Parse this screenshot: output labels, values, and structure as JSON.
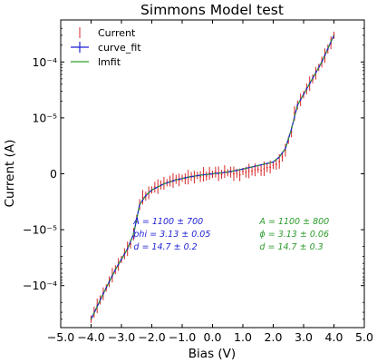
{
  "chart_data": {
    "type": "scatter",
    "title": "Simmons Model test",
    "xlabel": "Bias (V)",
    "ylabel": "Current (A)",
    "xlim": [
      -5.0,
      5.0
    ],
    "x_ticks": [
      -5.0,
      -4.0,
      -3.0,
      -2.0,
      -1.0,
      0.0,
      1.0,
      2.0,
      3.0,
      4.0,
      5.0
    ],
    "x_tick_labels": [
      "−5.0",
      "−4.0",
      "−3.0",
      "−2.0",
      "−1.0",
      "0.0",
      "1.0",
      "2.0",
      "3.0",
      "4.0",
      "5.0"
    ],
    "y_scale": "symlog",
    "y_linthresh": 1e-05,
    "y_ticks": [
      -0.0001,
      -1e-05,
      0,
      1e-05,
      0.0001
    ],
    "y_tick_labels": [
      "−10⁻⁴",
      "−10⁻⁵",
      "0",
      "10⁻⁵",
      "10⁻⁴"
    ],
    "ylim": [
      -0.0004,
      0.0004
    ],
    "grid": false,
    "legend": {
      "position": "top-left",
      "entries": [
        {
          "label": "Current",
          "color": "#d62728",
          "marker": "errorbar"
        },
        {
          "label": "curve_fit",
          "color": "#1f1fd6",
          "marker": "errorbar-cross"
        },
        {
          "label": "lmfit",
          "color": "#2ca02c",
          "marker": "line"
        }
      ]
    },
    "series": [
      {
        "name": "Current",
        "color": "#d62728",
        "style": "errorbar",
        "x": [
          -4.0,
          -3.9,
          -3.8,
          -3.7,
          -3.6,
          -3.5,
          -3.4,
          -3.3,
          -3.2,
          -3.1,
          -3.0,
          -2.9,
          -2.8,
          -2.7,
          -2.6,
          -2.5,
          -2.4,
          -2.3,
          -2.2,
          -2.1,
          -2.0,
          -1.9,
          -1.8,
          -1.7,
          -1.6,
          -1.5,
          -1.4,
          -1.3,
          -1.2,
          -1.1,
          -1.0,
          -0.9,
          -0.8,
          -0.7,
          -0.6,
          -0.5,
          -0.4,
          -0.3,
          -0.2,
          -0.1,
          0.0,
          0.1,
          0.2,
          0.3,
          0.4,
          0.5,
          0.6,
          0.7,
          0.8,
          0.9,
          1.0,
          1.1,
          1.2,
          1.3,
          1.4,
          1.5,
          1.6,
          1.7,
          1.8,
          1.9,
          2.0,
          2.1,
          2.2,
          2.3,
          2.4,
          2.5,
          2.6,
          2.7,
          2.8,
          2.9,
          3.0,
          3.1,
          3.2,
          3.3,
          3.4,
          3.5,
          3.6,
          3.7,
          3.8,
          3.9,
          4.0
        ],
        "y": [
          -0.0004,
          -0.0003,
          -0.00023,
          -0.00018,
          -0.00014,
          -0.00011,
          -8.5e-05,
          -6.5e-05,
          -5.2e-05,
          -4.2e-05,
          -3.4e-05,
          -2.7e-05,
          -2.2e-05,
          -1.8e-05,
          -1.2e-05,
          -8e-06,
          -5.5e-06,
          -4.2e-06,
          -4e-06,
          -3.4e-06,
          -2.9e-06,
          -2.4e-06,
          -2.3e-06,
          -2e-06,
          -1.7e-06,
          -1.6e-06,
          -1.3e-06,
          -1.2e-06,
          -1e-06,
          -1.1e-06,
          -8e-07,
          -9e-07,
          -6e-07,
          -5e-07,
          -6e-07,
          -3e-07,
          -5e-07,
          -1e-07,
          -4e-07,
          1e-07,
          -1e-07,
          3e-07,
          0.0,
          -1e-07,
          4e-07,
          2e-07,
          3e-07,
          0.0,
          1e-07,
          -2e-07,
          4e-07,
          3e-07,
          5e-07,
          5e-07,
          7e-07,
          8e-07,
          6e-07,
          9e-07,
          1.1e-06,
          1.2e-06,
          1.5e-06,
          1.7e-06,
          2.2e-06,
          3e-06,
          4.2e-06,
          6e-06,
          7.5e-06,
          1.2e-05,
          1.7e-05,
          2.1e-05,
          2.6e-05,
          3.3e-05,
          4.1e-05,
          5e-05,
          6.3e-05,
          8e-05,
          0.0001,
          0.00013,
          0.00017,
          0.00022,
          0.0003
        ]
      },
      {
        "name": "curve_fit",
        "color": "#1f1fd6",
        "style": "line",
        "x": [
          -4.0,
          -3.6,
          -3.2,
          -2.8,
          -2.6,
          -2.4,
          -2.2,
          -2.0,
          -1.6,
          -1.2,
          -0.8,
          -0.4,
          0.0,
          0.4,
          0.8,
          1.2,
          1.6,
          2.0,
          2.2,
          2.4,
          2.6,
          2.8,
          3.2,
          3.6,
          4.0
        ],
        "y": [
          -0.0004,
          -0.00014,
          -5.2e-05,
          -2.2e-05,
          -1.2e-05,
          -5.5e-06,
          -3.9e-06,
          -2.9e-06,
          -1.8e-06,
          -1.1e-06,
          -6e-07,
          -2.5e-07,
          0.0,
          2.5e-07,
          6e-07,
          1.1e-06,
          1.6e-06,
          2.1e-06,
          3e-06,
          4.5e-06,
          8e-06,
          1.7e-05,
          4.1e-05,
          0.0001,
          0.0003
        ]
      },
      {
        "name": "lmfit",
        "color": "#2ca02c",
        "style": "line",
        "x": [
          -4.0,
          -3.6,
          -3.2,
          -2.8,
          -2.6,
          -2.4,
          -2.2,
          -2.0,
          -1.6,
          -1.2,
          -0.8,
          -0.4,
          0.0,
          0.4,
          0.8,
          1.2,
          1.6,
          2.0,
          2.2,
          2.4,
          2.6,
          2.8,
          3.2,
          3.6,
          4.0
        ],
        "y": [
          -0.0004,
          -0.00014,
          -5.2e-05,
          -2.2e-05,
          -1.2e-05,
          -5.5e-06,
          -3.9e-06,
          -2.9e-06,
          -1.8e-06,
          -1.1e-06,
          -6e-07,
          -2.5e-07,
          0.0,
          2.5e-07,
          6e-07,
          1.1e-06,
          1.6e-06,
          2.1e-06,
          3e-06,
          4.5e-06,
          8e-06,
          1.7e-05,
          4.1e-05,
          0.0001,
          0.0003
        ]
      }
    ],
    "annotations": [
      {
        "id": "curve-fit-params",
        "color": "#1f1fd6",
        "anchor_x": -2.6,
        "anchor_y": -9e-06,
        "lines": [
          "A = 1100 ± 700",
          "phi = 3.13 ± 0.05",
          "d = 14.7 ± 0.2"
        ]
      },
      {
        "id": "lmfit-params",
        "color": "#2a9a2a",
        "anchor_x": 1.55,
        "anchor_y": -9e-06,
        "lines": [
          "A = 1100 ± 800",
          "ϕ = 3.13 ± 0.06",
          "d = 14.7 ± 0.3"
        ]
      }
    ]
  }
}
